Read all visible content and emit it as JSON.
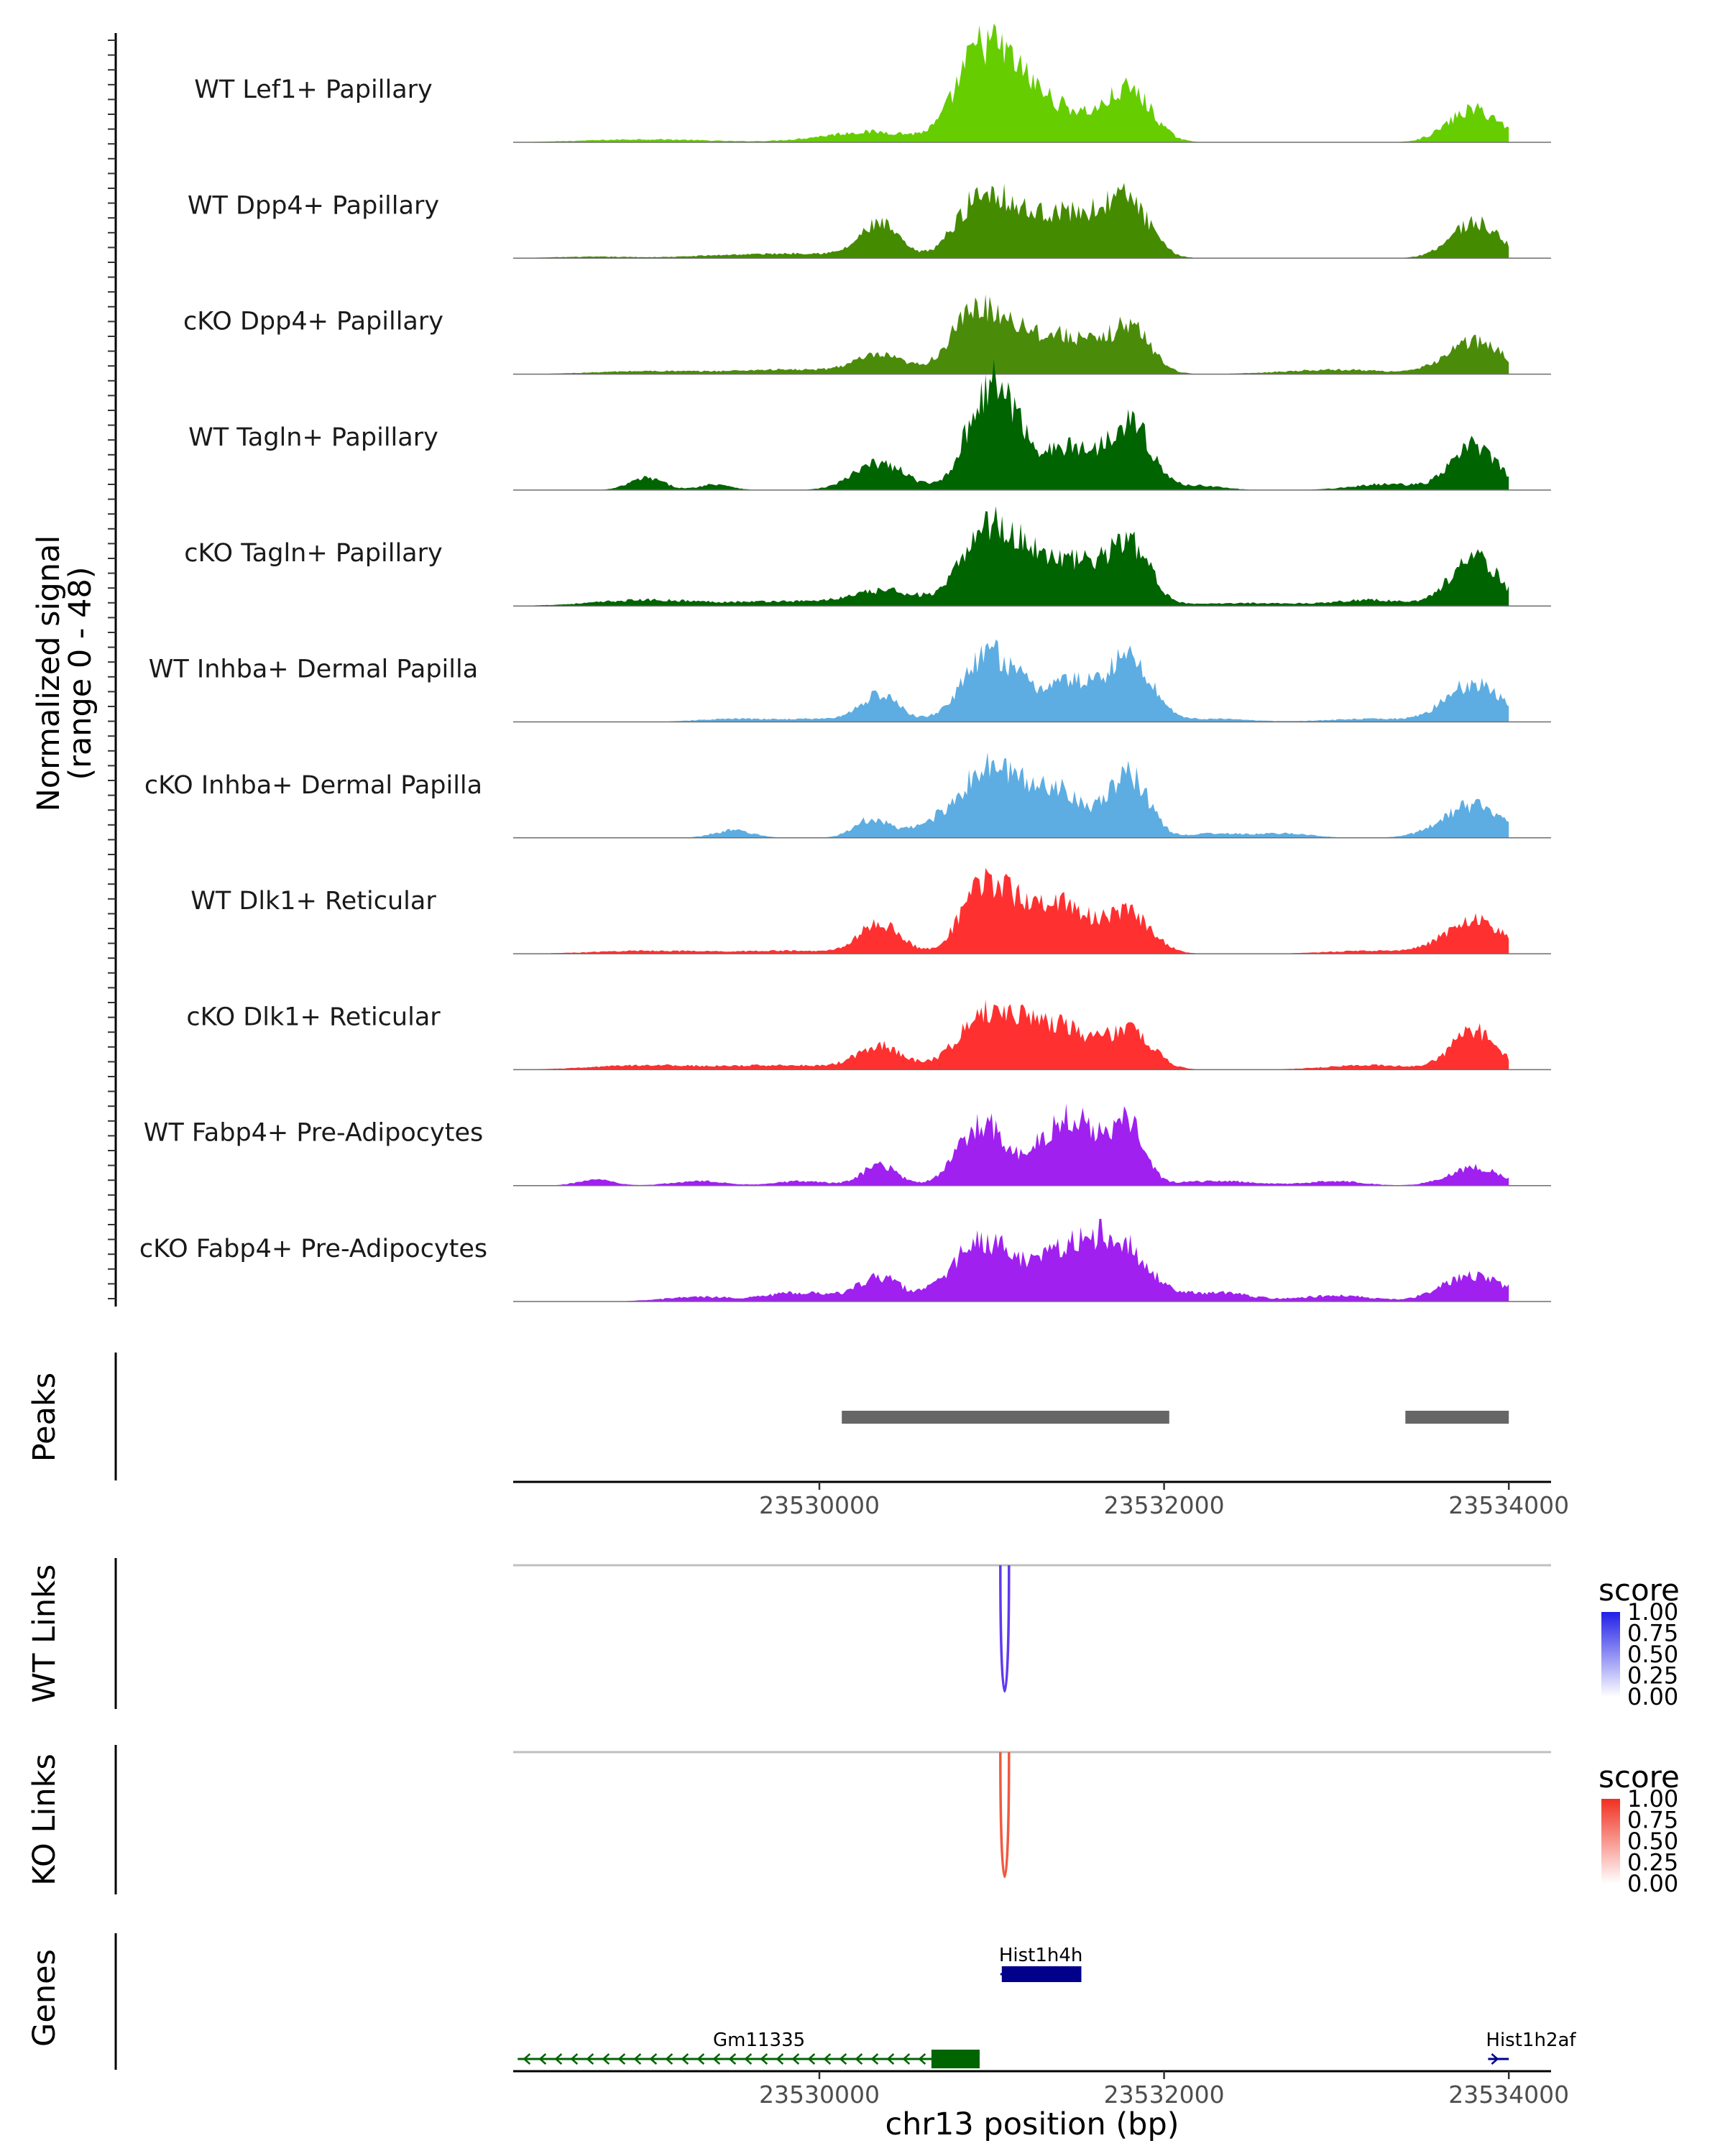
{
  "chart_data": {
    "type": "area",
    "region": {
      "chromosome": "chr13",
      "start": 23528000,
      "end": 23534300
    },
    "coverage": {
      "ylabel": "Normalized signal",
      "range_label": "(range 0 - 48)",
      "ylim": [
        0,
        48
      ],
      "tracks": [
        {
          "name": "WT Lef1+ Papillary",
          "color": "#66CD00",
          "peaks": [
            [
              23529000,
              2,
              350
            ],
            [
              23530300,
              7,
              280
            ],
            [
              23530900,
              40,
              130
            ],
            [
              23531050,
              32,
              150
            ],
            [
              23531200,
              18,
              140
            ],
            [
              23531450,
              18,
              160
            ],
            [
              23531800,
              34,
              130
            ],
            [
              23533800,
              22,
              150
            ]
          ]
        },
        {
          "name": "WT Dpp4+ Papillary",
          "color": "#458B00",
          "peaks": [
            [
              23528700,
              1,
              250
            ],
            [
              23529500,
              2,
              250
            ],
            [
              23530000,
              3,
              250
            ],
            [
              23530350,
              22,
              110
            ],
            [
              23530950,
              40,
              150
            ],
            [
              23531300,
              24,
              200
            ],
            [
              23531600,
              18,
              180
            ],
            [
              23531800,
              30,
              120
            ],
            [
              23533800,
              24,
              140
            ]
          ]
        },
        {
          "name": "cKO Dpp4+ Papillary",
          "color": "#4B8B0A",
          "peaks": [
            [
              23529000,
              2,
              300
            ],
            [
              23529800,
              3,
              300
            ],
            [
              23530350,
              12,
              150
            ],
            [
              23530900,
              40,
              140
            ],
            [
              23531150,
              24,
              130
            ],
            [
              23531450,
              24,
              150
            ],
            [
              23531800,
              32,
              120
            ],
            [
              23533000,
              3,
              300
            ],
            [
              23533800,
              22,
              160
            ]
          ]
        },
        {
          "name": "WT Tagln+ Papillary",
          "color": "#006400",
          "peaks": [
            [
              23529000,
              8,
              100
            ],
            [
              23529400,
              4,
              90
            ],
            [
              23530350,
              18,
              150
            ],
            [
              23530950,
              48,
              120
            ],
            [
              23531100,
              38,
              120
            ],
            [
              23531450,
              28,
              150
            ],
            [
              23531800,
              46,
              120
            ],
            [
              23532200,
              3,
              140
            ],
            [
              23533300,
              4,
              200
            ],
            [
              23533800,
              30,
              130
            ]
          ]
        },
        {
          "name": "cKO Tagln+ Papillary",
          "color": "#006400",
          "peaks": [
            [
              23529000,
              4,
              300
            ],
            [
              23529800,
              3,
              300
            ],
            [
              23530400,
              10,
              200
            ],
            [
              23530950,
              48,
              130
            ],
            [
              23531200,
              32,
              140
            ],
            [
              23531500,
              26,
              150
            ],
            [
              23531800,
              40,
              120
            ],
            [
              23532500,
              2,
              300
            ],
            [
              23533200,
              4,
              200
            ],
            [
              23533800,
              32,
              140
            ]
          ]
        },
        {
          "name": "WT Inhba+ Dermal Papilla",
          "color": "#5DADE2",
          "peaks": [
            [
              23529500,
              2,
              200
            ],
            [
              23530000,
              2,
              200
            ],
            [
              23530350,
              18,
              110
            ],
            [
              23531000,
              46,
              160
            ],
            [
              23531450,
              26,
              150
            ],
            [
              23531800,
              42,
              130
            ],
            [
              23532300,
              2,
              200
            ],
            [
              23533200,
              2,
              250
            ],
            [
              23533800,
              26,
              160
            ]
          ]
        },
        {
          "name": "cKO Inhba+ Dermal Papilla",
          "color": "#5DADE2",
          "peaks": [
            [
              23529500,
              5,
              110
            ],
            [
              23530300,
              12,
              100
            ],
            [
              23530650,
              6,
              150
            ],
            [
              23531000,
              46,
              180
            ],
            [
              23531400,
              30,
              160
            ],
            [
              23531800,
              42,
              110
            ],
            [
              23532300,
              3,
              150
            ],
            [
              23532700,
              3,
              150
            ],
            [
              23533800,
              22,
              180
            ]
          ]
        },
        {
          "name": "WT Dlk1+ Reticular",
          "color": "#FF3030",
          "peaks": [
            [
              23529000,
              2,
              300
            ],
            [
              23529800,
              2,
              300
            ],
            [
              23530350,
              20,
              120
            ],
            [
              23530950,
              42,
              130
            ],
            [
              23531200,
              24,
              150
            ],
            [
              23531450,
              26,
              150
            ],
            [
              23531800,
              26,
              130
            ],
            [
              23533200,
              2,
              250
            ],
            [
              23533800,
              22,
              170
            ]
          ]
        },
        {
          "name": "cKO Dlk1+ Reticular",
          "color": "#FF3030",
          "peaks": [
            [
              23529000,
              3,
              300
            ],
            [
              23529800,
              3,
              300
            ],
            [
              23530350,
              16,
              130
            ],
            [
              23530950,
              32,
              160
            ],
            [
              23531200,
              22,
              150
            ],
            [
              23531450,
              22,
              150
            ],
            [
              23531800,
              26,
              130
            ],
            [
              23533200,
              3,
              250
            ],
            [
              23533800,
              26,
              130
            ]
          ]
        },
        {
          "name": "WT Fabp4+ Pre-Adipocytes",
          "color": "#A020F0",
          "peaks": [
            [
              23528700,
              4,
              100
            ],
            [
              23529300,
              3,
              150
            ],
            [
              23529900,
              3,
              150
            ],
            [
              23530350,
              14,
              100
            ],
            [
              23530950,
              42,
              140
            ],
            [
              23531350,
              30,
              120
            ],
            [
              23531550,
              34,
              120
            ],
            [
              23531800,
              40,
              90
            ],
            [
              23532300,
              3,
              250
            ],
            [
              23533000,
              3,
              150
            ],
            [
              23533800,
              12,
              150
            ]
          ]
        },
        {
          "name": "cKO Fabp4+ Pre-Adipocytes",
          "color": "#A020F0",
          "peaks": [
            [
              23529300,
              3,
              200
            ],
            [
              23529900,
              6,
              200
            ],
            [
              23530350,
              16,
              120
            ],
            [
              23530950,
              40,
              180
            ],
            [
              23531450,
              32,
              180
            ],
            [
              23531750,
              34,
              160
            ],
            [
              23532300,
              6,
              200
            ],
            [
              23533000,
              4,
              200
            ],
            [
              23533800,
              18,
              180
            ]
          ]
        }
      ]
    },
    "peaks_track": {
      "label": "Peaks",
      "intervals": [
        [
          23530130,
          23532030
        ],
        [
          23533400,
          23534000
        ]
      ],
      "color": "#666666"
    },
    "x_axis": {
      "ticks": [
        23530000,
        23532000,
        23534000
      ],
      "tick_labels": [
        "23530000",
        "23532000",
        "23534000"
      ],
      "title": "chr13 position (bp)"
    },
    "links": [
      {
        "label": "WT Links",
        "legend_title": "score",
        "color": "#6039F0",
        "legend_color": "#2020E8",
        "legend_ticks": [
          "1.00",
          "0.75",
          "0.50",
          "0.25",
          "0.00"
        ],
        "arcs": [
          {
            "start": 23531050,
            "end": 23531100,
            "score": 1.0
          }
        ]
      },
      {
        "label": "KO Links",
        "legend_title": "score",
        "color": "#F05A40",
        "legend_color": "#F03020",
        "legend_ticks": [
          "1.00",
          "0.75",
          "0.50",
          "0.25",
          "0.00"
        ],
        "arcs": [
          {
            "start": 23531050,
            "end": 23531100,
            "score": 1.0
          }
        ]
      }
    ],
    "genes": {
      "label": "Genes",
      "items": [
        {
          "name": "Hist1h4h",
          "start": 23531050,
          "end": 23531520,
          "strand": "+",
          "color": "#00008B",
          "row": 0
        },
        {
          "name": "Gm11335",
          "start": 23528250,
          "end": 23530930,
          "strand": "-",
          "color": "#006400",
          "row": 1,
          "exon": [
            23530650,
            23530930
          ]
        },
        {
          "name": "Hist1h2af",
          "start": 23533880,
          "end": 23534000,
          "strand": "+",
          "color": "#00008B",
          "row": 1
        }
      ]
    }
  }
}
